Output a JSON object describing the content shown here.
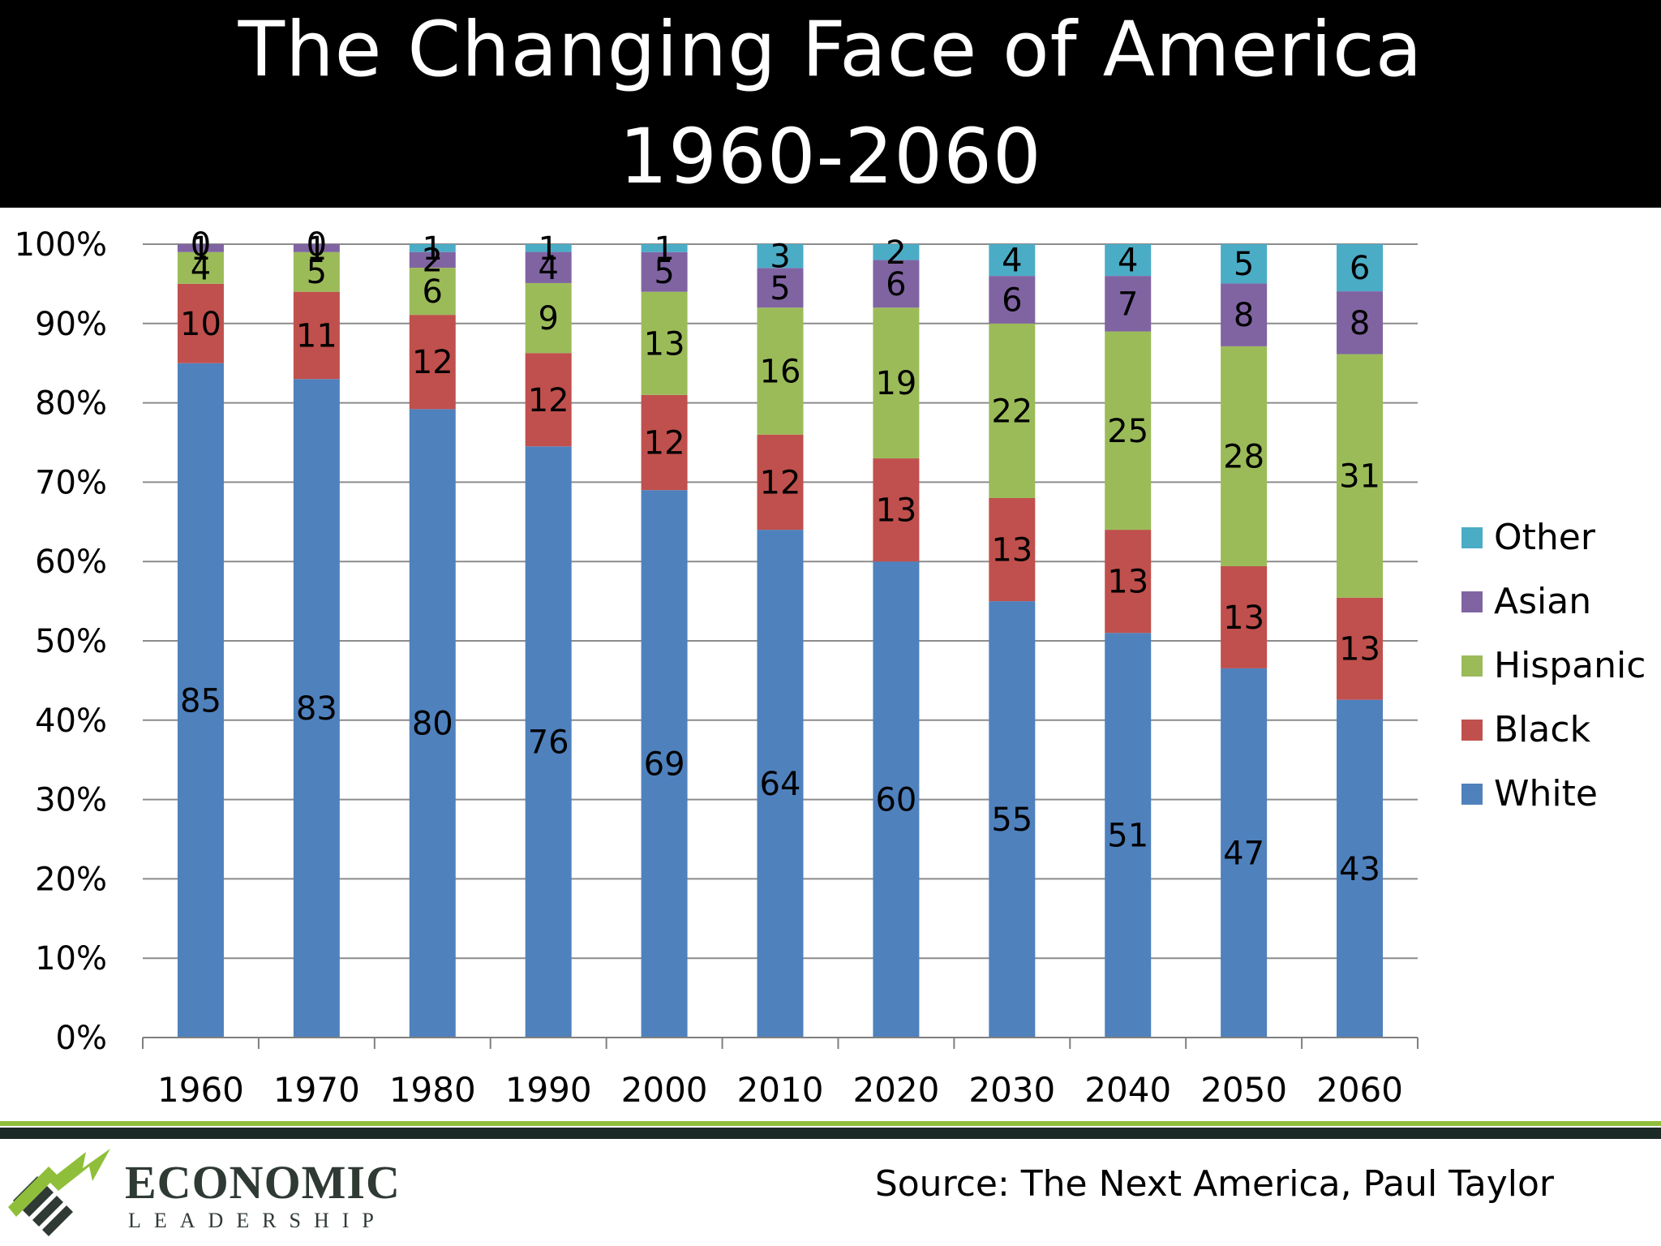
{
  "title": {
    "line1": "The Changing Face of America",
    "line2": "1960-2060"
  },
  "source": "Source: The Next America, Paul Taylor",
  "logo": {
    "name": "ECONOMIC",
    "sub": "LEADERSHIP"
  },
  "colors": {
    "White": "#4f81bd",
    "Black": "#c0504d",
    "Hispanic": "#9bbb59",
    "Asian": "#8064a2",
    "Other": "#4bacc6"
  },
  "chart_data": {
    "type": "bar",
    "stacked": "percent",
    "categories": [
      "1960",
      "1970",
      "1980",
      "1990",
      "2000",
      "2010",
      "2020",
      "2030",
      "2040",
      "2050",
      "2060"
    ],
    "series": [
      {
        "name": "White",
        "values": [
          85,
          83,
          80,
          76,
          69,
          64,
          60,
          55,
          51,
          47,
          43
        ]
      },
      {
        "name": "Black",
        "values": [
          10,
          11,
          12,
          12,
          12,
          12,
          13,
          13,
          13,
          13,
          13
        ]
      },
      {
        "name": "Hispanic",
        "values": [
          4,
          5,
          6,
          9,
          13,
          16,
          19,
          22,
          25,
          28,
          31
        ]
      },
      {
        "name": "Asian",
        "values": [
          1,
          1,
          2,
          4,
          5,
          5,
          6,
          6,
          7,
          8,
          8
        ]
      },
      {
        "name": "Other",
        "values": [
          0,
          0,
          1,
          1,
          1,
          3,
          2,
          4,
          4,
          5,
          6
        ]
      }
    ],
    "data_labels": {
      "White": [
        "85",
        "83",
        "80",
        "76",
        "69",
        "64",
        "60",
        "55",
        "51",
        "47",
        "43"
      ],
      "Black": [
        "10",
        "11",
        "12",
        "12",
        "12",
        "12",
        "13",
        "13",
        "13",
        "13",
        "13"
      ],
      "Hispanic": [
        "4",
        "5",
        "6",
        "9",
        "13",
        "16",
        "19",
        "22",
        "25",
        "28",
        "31"
      ],
      "Asian": [
        "1",
        "1",
        "2",
        "4",
        "5",
        "5",
        "6",
        "6",
        "7",
        "8",
        "8"
      ],
      "Other": [
        "0",
        "0",
        "1",
        "1",
        "1",
        "3",
        "2",
        "4",
        "4",
        "5",
        "6"
      ]
    },
    "ylim": [
      0,
      100
    ],
    "yticks": [
      "0%",
      "10%",
      "20%",
      "30%",
      "40%",
      "50%",
      "60%",
      "70%",
      "80%",
      "90%",
      "100%"
    ],
    "grid": true,
    "legend": {
      "position": "right",
      "entries": [
        "Other",
        "Asian",
        "Hispanic",
        "Black",
        "White"
      ]
    }
  }
}
